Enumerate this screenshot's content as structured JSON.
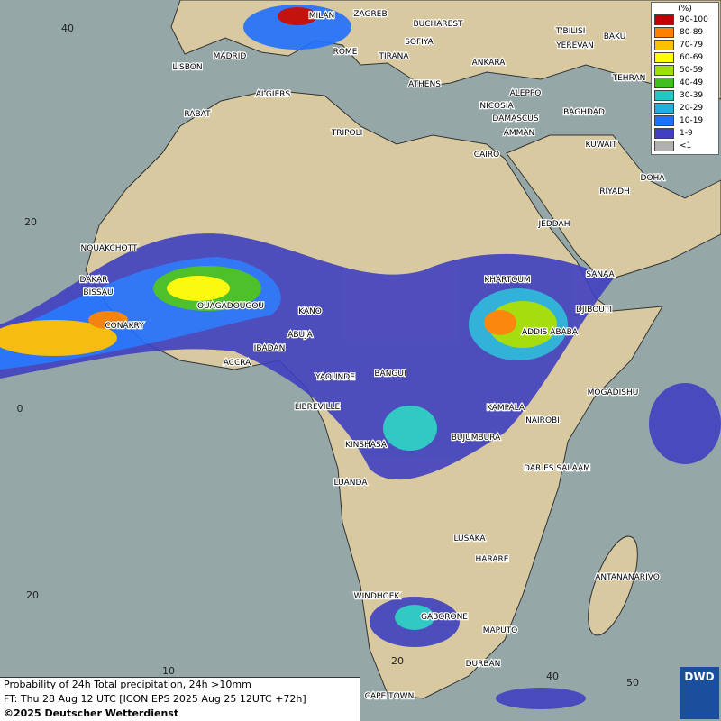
{
  "legend": {
    "title": "(%)",
    "items": [
      {
        "label": "90-100",
        "color": "#c00000"
      },
      {
        "label": "80-89",
        "color": "#ff8000"
      },
      {
        "label": "70-79",
        "color": "#ffc000"
      },
      {
        "label": "60-69",
        "color": "#ffff00"
      },
      {
        "label": "50-59",
        "color": "#a0e000"
      },
      {
        "label": "40-49",
        "color": "#40c020"
      },
      {
        "label": "30-39",
        "color": "#20c8c8"
      },
      {
        "label": "20-29",
        "color": "#20b0e0"
      },
      {
        "label": "10-19",
        "color": "#2070ff"
      },
      {
        "label": "1-9",
        "color": "#4040c0"
      },
      {
        "label": "<1",
        "color": "#b0b0b0"
      }
    ]
  },
  "cities": [
    "MILAN",
    "ZAGREB",
    "BUCHAREST",
    "T'BILISI",
    "BAKU",
    "SOFIYA",
    "YEREVAN",
    "MADRID",
    "ROME",
    "TIRANA",
    "ANKARA",
    "LISBON",
    "TEHRAN",
    "ATHENS",
    "ALGIERS",
    "ALEPPO",
    "RABAT",
    "NICOSIA",
    "BAGHDAD",
    "DAMASCUS",
    "TRIPOLI",
    "AMMAN",
    "KUWAIT",
    "CAIRO",
    "DOHA",
    "RIYADH",
    "JEDDAH",
    "NOUAKCHOTT",
    "SANAA",
    "DAKAR",
    "KHARTOUM",
    "BISSAU",
    "OUAGADOUGOU",
    "DJIBOUTI",
    "KANO",
    "CONAKRY",
    "ABUJA",
    "ADDIS ABABA",
    "IBADAN",
    "ACCRA",
    "BANGUI",
    "YAOUNDE",
    "MOGADISHU",
    "LIBREVILLE",
    "KAMPALA",
    "NAIROBI",
    "KINSHASA",
    "BUJUMBURA",
    "DAR ES SALAAM",
    "LUANDA",
    "LUSAKA",
    "HARARE",
    "ANTANANARIVO",
    "WINDHOEK",
    "GABORONE",
    "MAPUTO",
    "DURBAN",
    "CAPE TOWN"
  ],
  "grid": {
    "lat_labels": [
      "40",
      "20",
      "0",
      "20"
    ],
    "lon_labels": [
      "10",
      "20",
      "40",
      "50"
    ]
  },
  "footer": {
    "product": "Probability of 24h Total precipitation, 24h >10mm",
    "forecast_time": "FT: Thu 28 Aug 12 UTC [ICON EPS 2025 Aug 25 12UTC +72h]",
    "copyright": "©2025 Deutscher Wetterdienst"
  },
  "logo": "DWD"
}
